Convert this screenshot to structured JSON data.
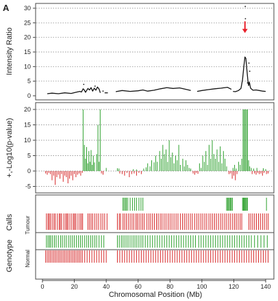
{
  "figure": {
    "panel_letter": "A",
    "xlabel": "Chromosomal Position (Mb)"
  },
  "colors": {
    "gain": "#2ca02c",
    "loss": "#d62728",
    "line": "#111111",
    "arrow": "#e8202a",
    "grid": "#777777",
    "frame": "#444444"
  },
  "chart_data": [
    {
      "type": "line",
      "ylabel": "Intensity Ratio",
      "xlim": [
        0,
        145
      ],
      "ylim": [
        0,
        32
      ],
      "yticks": [
        0,
        5,
        10,
        15,
        20,
        25,
        30
      ],
      "xticks": [
        0,
        20,
        40,
        60,
        80,
        100,
        120,
        140
      ],
      "grid": "horizontal-dotted",
      "annotation": {
        "type": "arrow",
        "x": 127,
        "y_from": 25.5,
        "y_to": 21.5
      },
      "outliers": [
        {
          "x": 127.2,
          "y": 30.6
        },
        {
          "x": 127.3,
          "y": 26.4
        },
        {
          "x": 129.5,
          "y": 11.2
        },
        {
          "x": 130.0,
          "y": 8.4
        },
        {
          "x": 128.6,
          "y": 4.4
        },
        {
          "x": 25.9,
          "y": 3.9
        },
        {
          "x": 33.0,
          "y": 3.3
        },
        {
          "x": 38.0,
          "y": 1.6
        }
      ],
      "segments": [
        {
          "x": [
            3,
            6,
            10,
            14,
            18,
            21,
            23.5,
            24.5,
            25.5,
            26.2,
            27,
            28.5,
            29.5,
            30.5,
            31.5,
            32.5,
            33.5,
            34.5,
            35.5,
            36.3
          ],
          "y": [
            0.7,
            0.9,
            0.7,
            1.0,
            0.8,
            1.2,
            1.5,
            1.3,
            2.4,
            2.0,
            1.2,
            2.5,
            2.0,
            2.8,
            1.6,
            2.6,
            1.9,
            3.0,
            2.3,
            1.0
          ]
        },
        {
          "x": [
            39,
            41
          ],
          "y": [
            1.0,
            1.0
          ]
        },
        {
          "x": [
            46,
            50,
            55,
            60,
            63,
            66,
            70,
            74,
            78,
            82,
            86,
            90,
            93
          ],
          "y": [
            1.4,
            1.8,
            1.5,
            1.7,
            2.0,
            1.6,
            1.9,
            2.4,
            2.8,
            2.5,
            2.7,
            2.2,
            1.8
          ]
        },
        {
          "x": [
            97,
            100,
            104,
            108,
            112,
            116,
            118.5
          ],
          "y": [
            1.5,
            1.8,
            2.1,
            2.4,
            2.6,
            2.9,
            2.2
          ]
        },
        {
          "x": [
            119.5,
            121,
            123,
            124.5,
            125.5,
            126.3,
            127.0,
            127.6,
            128.2,
            128.8,
            129.3,
            129.8,
            130.5,
            132,
            134,
            136,
            138,
            140
          ],
          "y": [
            1.5,
            1.4,
            1.8,
            2.5,
            5.5,
            10.0,
            13.3,
            12.8,
            9.0,
            5.5,
            3.5,
            4.7,
            2.6,
            1.9,
            2.0,
            1.8,
            1.6,
            1.5
          ]
        }
      ]
    },
    {
      "type": "bar",
      "ylabel": "+,-Log10(p-value)",
      "xlim": [
        0,
        145
      ],
      "ylim": [
        -8,
        22
      ],
      "yticks": [
        -5,
        0,
        5,
        10,
        15,
        20
      ],
      "grid": "horizontal-dotted",
      "positive": {
        "x": [
          25.5,
          26.3,
          27.0,
          27.7,
          28.4,
          29.1,
          29.8,
          30.5,
          31.2,
          31.9,
          32.6,
          34.0,
          34.8,
          35.5,
          36.2,
          40.0,
          47.0,
          48.0,
          57.0,
          59.0,
          63.5,
          65.0,
          66.0,
          67.5,
          68.5,
          70.0,
          71.0,
          72.0,
          73.5,
          74.5,
          75.5,
          76.5,
          77.5,
          78.5,
          79.5,
          80.5,
          81.5,
          82.5,
          83.5,
          84.5,
          85.5,
          86.5,
          88.0,
          89.0,
          90.0,
          91.0,
          92.0,
          93.0,
          98.5,
          99.5,
          100.5,
          101.5,
          102.5,
          103.5,
          104.5,
          105.5,
          106.5,
          107.5,
          108.5,
          109.5,
          110.5,
          111.5,
          112.5,
          113.5,
          114.5,
          115.5,
          119.5,
          120.5,
          121.5,
          123.0,
          124.0,
          125.0,
          125.8,
          126.5,
          127.2,
          127.9,
          128.6,
          129.3,
          130.0,
          131.0,
          132.5,
          134.5,
          138.5,
          140.0
        ],
        "y": [
          20.0,
          8.5,
          4.0,
          7.8,
          2.5,
          6.5,
          3.0,
          6.8,
          2.0,
          5.0,
          2.8,
          5.5,
          15.0,
          3.0,
          20.0,
          1.0,
          0.9,
          0.8,
          0.6,
          0.5,
          0.8,
          1.2,
          2.5,
          1.5,
          3.5,
          2.8,
          5.0,
          3.0,
          6.5,
          4.0,
          8.5,
          5.5,
          7.0,
          3.0,
          10.0,
          4.5,
          6.0,
          2.5,
          5.0,
          3.5,
          8.5,
          2.0,
          4.0,
          1.5,
          3.5,
          2.0,
          1.0,
          0.8,
          2.5,
          1.0,
          5.0,
          3.0,
          6.5,
          2.0,
          8.5,
          4.0,
          10.0,
          5.5,
          4.0,
          7.0,
          3.0,
          8.0,
          2.5,
          6.5,
          4.0,
          1.5,
          1.0,
          2.0,
          0.8,
          3.0,
          2.0,
          4.0,
          20.0,
          20.0,
          20.0,
          20.0,
          20.0,
          3.5,
          1.5,
          1.0,
          0.8,
          1.0,
          0.9,
          0.6
        ]
      },
      "negative": {
        "x": [
          2,
          3,
          4,
          5,
          6,
          7,
          8,
          9,
          10,
          11,
          12,
          13,
          14,
          15,
          16,
          17,
          18,
          19,
          20,
          21,
          22,
          23,
          24,
          25,
          37.0,
          38.0,
          48.5,
          50.0,
          51.5,
          53.0,
          54.5,
          56.0,
          57.5,
          59.0,
          60.5,
          62.0,
          94.5,
          95.5,
          96.5,
          97.5,
          117.0,
          118.0,
          119.0,
          120.0,
          121.0,
          122.0,
          131.5,
          133.0,
          134.0,
          135.0,
          136.0,
          137.0,
          138.0,
          139.0,
          140.5,
          141.5
        ],
        "y": [
          0.8,
          1.2,
          0.6,
          1.0,
          3.0,
          1.5,
          4.5,
          2.0,
          1.2,
          2.5,
          1.0,
          3.5,
          1.5,
          2.0,
          4.0,
          2.5,
          1.5,
          3.0,
          1.0,
          2.0,
          1.2,
          0.8,
          1.5,
          0.6,
          0.8,
          1.2,
          0.8,
          1.0,
          1.5,
          0.6,
          2.0,
          1.0,
          0.8,
          1.5,
          0.6,
          1.0,
          0.8,
          1.2,
          0.6,
          0.9,
          1.0,
          0.8,
          2.5,
          1.5,
          3.0,
          1.0,
          1.0,
          0.8,
          1.2,
          0.6,
          1.0,
          0.8,
          1.5,
          0.6,
          1.0,
          0.8
        ]
      }
    },
    {
      "type": "heatmap",
      "ylabel": "Calls",
      "track_label": "Tumour",
      "xlim": [
        0,
        145
      ],
      "gain_x": [
        50.5,
        51.2,
        52.0,
        52.6,
        53.5,
        55.0,
        56.5,
        57.8,
        59.0,
        60.5,
        61.8,
        63.0,
        115.5,
        116.1,
        116.7,
        117.3,
        117.9,
        118.5,
        119.1,
        125.5,
        126.0,
        126.5,
        127.0,
        127.5,
        128.0,
        128.6,
        140.5
      ],
      "loss_x": [
        2.5,
        3.5,
        4.2,
        5.0,
        6.1,
        7.2,
        8.0,
        9.3,
        10.5,
        11.2,
        12.0,
        13.4,
        14.5,
        15.3,
        16.0,
        17.2,
        18.4,
        19.5,
        20.2,
        21.0,
        22.3,
        23.5,
        24.4,
        25.2,
        28.5,
        29.5,
        30.5,
        31.5,
        32.8,
        34.0,
        35.2,
        36.6,
        37.8,
        39.0,
        40.5,
        47.0,
        48.2,
        49.0,
        50.5,
        51.5,
        52.6,
        53.8,
        55.0,
        56.2,
        57.3,
        58.6,
        59.5,
        60.6,
        61.8,
        62.9,
        64.0,
        65.5,
        66.7,
        67.8,
        69.0,
        70.2,
        71.5,
        72.6,
        73.9,
        75.0,
        76.3,
        77.5,
        78.8,
        80.0,
        81.2,
        82.5,
        83.8,
        85.0,
        86.5,
        87.8,
        89.0,
        90.2,
        91.5,
        92.8,
        94.0,
        95.5,
        96.8,
        98.0,
        99.3,
        100.5,
        101.8,
        103.0,
        104.4,
        105.6,
        106.8,
        108.0,
        109.2,
        110.5,
        111.8,
        113.0,
        114.3,
        115.5,
        116.8,
        118.0,
        119.3,
        120.5,
        121.6,
        122.8,
        124.0,
        125.0,
        129.5,
        130.6,
        131.8,
        133.0,
        134.2,
        135.5,
        136.7,
        138.0,
        139.2,
        140.5,
        141.6
      ]
    },
    {
      "type": "heatmap",
      "ylabel": "Genotype",
      "track_label": "Normal",
      "xlim": [
        0,
        145
      ],
      "gain_x": [
        2.5,
        3.5,
        4.4,
        5.2,
        6.3,
        7.5,
        8.6,
        10.0,
        11.4,
        12.5,
        13.8,
        15.0,
        16.4,
        17.6,
        18.8,
        20.0,
        21.3,
        22.6,
        23.8,
        25.0,
        26.5,
        27.8,
        29.0,
        30.3,
        31.5,
        32.8,
        34.0,
        35.5,
        37.0,
        38.5,
        47.0,
        48.2,
        49.5,
        50.6,
        51.8,
        53.0,
        54.2,
        55.5,
        56.8,
        58.0,
        59.2,
        60.5,
        61.8,
        63.0,
        64.5,
        66.0,
        67.5,
        69.0,
        70.5,
        72.0,
        73.5,
        75.0,
        76.5,
        78.0,
        79.5,
        81.0,
        82.5,
        84.0,
        85.5,
        87.0,
        88.5,
        90.0,
        91.5,
        93.0,
        94.5,
        96.0,
        98.0,
        99.5,
        101.0,
        102.5,
        104.0,
        105.5,
        107.0,
        108.5,
        110.0,
        111.5,
        113.0,
        114.5,
        116.0,
        117.5,
        119.0,
        120.5,
        122.0,
        123.5,
        125.0,
        126.5,
        128.0,
        129.5,
        131.0,
        133.0,
        135.0,
        137.0,
        139.0,
        141.0
      ],
      "loss_x": [
        2.0,
        3.0,
        4.0,
        5.0,
        6.0,
        7.0,
        8.0,
        9.0,
        10.0,
        11.0,
        12.0,
        13.0,
        14.0,
        15.0,
        16.0,
        17.0,
        18.0,
        19.0,
        20.0,
        21.0,
        22.0,
        23.0,
        24.0,
        25.0,
        26.5,
        28.0,
        29.5,
        31.0,
        32.5,
        34.0,
        35.5,
        37.0,
        38.5,
        40.0,
        47.0,
        48.5,
        50.0,
        51.5,
        53.0,
        54.5,
        56.0,
        57.5,
        59.0,
        60.5,
        62.0,
        63.5,
        65.0,
        66.5,
        68.0,
        69.5,
        71.0,
        72.5,
        74.0,
        75.5,
        77.0,
        78.5,
        80.0,
        81.5,
        83.0,
        84.5,
        86.0,
        87.5,
        89.0,
        90.5,
        92.0,
        93.5,
        95.0,
        96.5,
        98.0,
        99.5,
        101.0,
        102.5,
        104.0,
        105.5,
        107.0,
        108.5,
        110.0,
        111.5,
        113.0,
        114.5,
        116.0,
        117.5,
        119.0,
        120.5,
        122.0,
        123.5,
        125.0,
        126.5,
        128.0,
        129.5,
        131.0,
        132.5,
        134.0,
        135.5,
        137.0,
        138.5,
        140.0,
        141.5
      ]
    }
  ]
}
